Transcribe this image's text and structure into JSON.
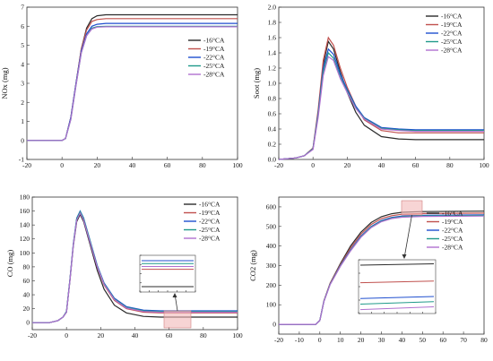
{
  "chart_data": [
    {
      "id": "nox",
      "type": "line",
      "ylabel": "NOx (mg)",
      "xlim": [
        -20,
        100
      ],
      "ylim": [
        -1,
        7
      ],
      "xticks": [
        -20,
        0,
        20,
        40,
        60,
        80,
        100
      ],
      "yticks": [
        -1,
        0,
        1,
        2,
        3,
        4,
        5,
        6,
        7
      ],
      "legend_position": "right",
      "series": [
        {
          "name": "-16°CA",
          "color": "#2b2b2b",
          "x": [
            -20,
            0,
            2,
            5,
            8,
            11,
            14,
            17,
            20,
            25,
            30,
            100
          ],
          "y": [
            0,
            0,
            0.1,
            1.2,
            3.0,
            4.8,
            5.9,
            6.4,
            6.55,
            6.6,
            6.6,
            6.6
          ]
        },
        {
          "name": "-19°CA",
          "color": "#c0504d",
          "x": [
            -20,
            0,
            2,
            5,
            8,
            11,
            14,
            17,
            20,
            25,
            30,
            100
          ],
          "y": [
            0,
            0,
            0.1,
            1.2,
            3.0,
            4.8,
            5.8,
            6.25,
            6.35,
            6.4,
            6.4,
            6.4
          ]
        },
        {
          "name": "-22°CA",
          "color": "#1f4fcf",
          "x": [
            -20,
            0,
            2,
            5,
            8,
            11,
            14,
            17,
            20,
            25,
            30,
            100
          ],
          "y": [
            0,
            0,
            0.1,
            1.2,
            3.0,
            4.7,
            5.6,
            6.0,
            6.1,
            6.15,
            6.15,
            6.15
          ]
        },
        {
          "name": "-25°CA",
          "color": "#1f9a8a",
          "x": [
            -20,
            0,
            2,
            5,
            8,
            11,
            14,
            17,
            20,
            25,
            30,
            100
          ],
          "y": [
            0,
            0,
            0.1,
            1.1,
            2.9,
            4.6,
            5.5,
            5.9,
            5.98,
            6.0,
            6.0,
            6.0
          ]
        },
        {
          "name": "-28°CA",
          "color": "#b070d0",
          "x": [
            -20,
            0,
            2,
            5,
            8,
            11,
            14,
            17,
            20,
            25,
            30,
            100
          ],
          "y": [
            0,
            0,
            0.1,
            1.1,
            2.9,
            4.6,
            5.5,
            5.85,
            5.95,
            5.97,
            5.97,
            5.97
          ]
        }
      ]
    },
    {
      "id": "soot",
      "type": "line",
      "ylabel": "Soot (mg)",
      "xlim": [
        -20,
        100
      ],
      "ylim": [
        0,
        2.0
      ],
      "xticks": [
        -20,
        0,
        20,
        40,
        60,
        80,
        100
      ],
      "yticks": [
        0.0,
        0.2,
        0.4,
        0.6,
        0.8,
        1.0,
        1.2,
        1.4,
        1.6,
        1.8,
        2.0
      ],
      "yticklabels": [
        "0.0",
        "0.2",
        "0.4",
        "0.6",
        "0.8",
        "1.0",
        "1.2",
        "1.4",
        "1.6",
        "1.8",
        "2.0"
      ],
      "legend_position": "top-right",
      "series": [
        {
          "name": "-16°CA",
          "color": "#2b2b2b",
          "x": [
            -20,
            -10,
            -5,
            0,
            3,
            6,
            9,
            12,
            16,
            20,
            25,
            30,
            40,
            50,
            60,
            100
          ],
          "y": [
            0,
            0.02,
            0.05,
            0.15,
            0.6,
            1.25,
            1.55,
            1.45,
            1.15,
            0.88,
            0.62,
            0.45,
            0.3,
            0.27,
            0.26,
            0.26
          ]
        },
        {
          "name": "-19°CA",
          "color": "#c0504d",
          "x": [
            -20,
            -10,
            -5,
            0,
            3,
            6,
            9,
            12,
            16,
            20,
            25,
            30,
            40,
            50,
            60,
            100
          ],
          "y": [
            0,
            0.02,
            0.05,
            0.15,
            0.65,
            1.3,
            1.6,
            1.5,
            1.2,
            0.95,
            0.7,
            0.52,
            0.38,
            0.35,
            0.35,
            0.35
          ]
        },
        {
          "name": "-22°CA",
          "color": "#1f4fcf",
          "x": [
            -20,
            -10,
            -5,
            0,
            3,
            6,
            9,
            12,
            16,
            20,
            25,
            30,
            40,
            50,
            60,
            100
          ],
          "y": [
            0,
            0.02,
            0.05,
            0.14,
            0.6,
            1.2,
            1.45,
            1.38,
            1.12,
            0.92,
            0.7,
            0.55,
            0.42,
            0.4,
            0.39,
            0.39
          ]
        },
        {
          "name": "-25°CA",
          "color": "#1f9a8a",
          "x": [
            -20,
            -10,
            -5,
            0,
            3,
            6,
            9,
            12,
            16,
            20,
            25,
            30,
            40,
            50,
            60,
            100
          ],
          "y": [
            0,
            0.02,
            0.05,
            0.14,
            0.58,
            1.15,
            1.4,
            1.33,
            1.08,
            0.9,
            0.68,
            0.54,
            0.41,
            0.39,
            0.38,
            0.38
          ]
        },
        {
          "name": "-28°CA",
          "color": "#b070d0",
          "x": [
            -20,
            -10,
            -5,
            0,
            3,
            6,
            9,
            12,
            16,
            20,
            25,
            30,
            40,
            50,
            60,
            100
          ],
          "y": [
            0,
            0.02,
            0.05,
            0.13,
            0.55,
            1.1,
            1.35,
            1.3,
            1.06,
            0.88,
            0.67,
            0.53,
            0.4,
            0.38,
            0.37,
            0.37
          ]
        }
      ]
    },
    {
      "id": "co",
      "type": "line",
      "ylabel": "CO (mg)",
      "xlim": [
        -20,
        100
      ],
      "ylim": [
        -10,
        180
      ],
      "xticks": [
        -20,
        0,
        20,
        40,
        60,
        80,
        100
      ],
      "yticks": [
        0,
        20,
        40,
        60,
        80,
        100,
        120,
        140,
        160,
        180
      ],
      "legend_position": "top-right",
      "inset": "zoomed region 56–72 x, ~10–22 y",
      "series": [
        {
          "name": "-16°CA",
          "color": "#2b2b2b",
          "x": [
            -20,
            -10,
            -5,
            -2,
            0,
            2,
            4,
            6,
            8,
            10,
            14,
            18,
            22,
            28,
            35,
            45,
            55,
            70,
            100
          ],
          "y": [
            0,
            0,
            3,
            8,
            15,
            60,
            110,
            145,
            155,
            145,
            110,
            75,
            48,
            25,
            14,
            9,
            8,
            8,
            8
          ]
        },
        {
          "name": "-19°CA",
          "color": "#c0504d",
          "x": [
            -20,
            -10,
            -5,
            -2,
            0,
            2,
            4,
            6,
            8,
            10,
            14,
            18,
            22,
            28,
            35,
            45,
            55,
            70,
            100
          ],
          "y": [
            0,
            0,
            3,
            8,
            16,
            62,
            112,
            148,
            158,
            148,
            114,
            80,
            54,
            32,
            20,
            15,
            14,
            14,
            14
          ]
        },
        {
          "name": "-22°CA",
          "color": "#1f4fcf",
          "x": [
            -20,
            -10,
            -5,
            -2,
            0,
            2,
            4,
            6,
            8,
            10,
            14,
            18,
            22,
            28,
            35,
            45,
            55,
            70,
            100
          ],
          "y": [
            0,
            0,
            3,
            8,
            16,
            62,
            113,
            150,
            160,
            150,
            116,
            82,
            57,
            35,
            23,
            18,
            17,
            17,
            17
          ]
        },
        {
          "name": "-25°CA",
          "color": "#1f9a8a",
          "x": [
            -20,
            -10,
            -5,
            -2,
            0,
            2,
            4,
            6,
            8,
            10,
            14,
            18,
            22,
            28,
            35,
            45,
            55,
            70,
            100
          ],
          "y": [
            0,
            0,
            3,
            8,
            16,
            61,
            112,
            149,
            159,
            149,
            115,
            81,
            56,
            34,
            22,
            17,
            16,
            16,
            16
          ]
        },
        {
          "name": "-28°CA",
          "color": "#b070d0",
          "x": [
            -20,
            -10,
            -5,
            -2,
            0,
            2,
            4,
            6,
            8,
            10,
            14,
            18,
            22,
            28,
            35,
            45,
            55,
            70,
            100
          ],
          "y": [
            0,
            0,
            3,
            8,
            15,
            60,
            111,
            147,
            157,
            147,
            113,
            80,
            55,
            33,
            21,
            16,
            15,
            15,
            15
          ]
        }
      ]
    },
    {
      "id": "co2",
      "type": "line",
      "ylabel": "CO2 (mg)",
      "xlim": [
        -20,
        80
      ],
      "ylim": [
        -50,
        650
      ],
      "xticks": [
        -20,
        -10,
        0,
        10,
        20,
        30,
        40,
        50,
        60,
        70,
        80
      ],
      "yticks": [
        0,
        100,
        200,
        300,
        400,
        500,
        600
      ],
      "legend_position": "right",
      "inset": "zoomed region 40–50 x, ~550–590 y",
      "series": [
        {
          "name": "-16°CA",
          "color": "#2b2b2b",
          "x": [
            -20,
            -2,
            0,
            2,
            5,
            10,
            15,
            20,
            25,
            30,
            35,
            40,
            50,
            80
          ],
          "y": [
            0,
            0,
            20,
            120,
            210,
            310,
            400,
            470,
            520,
            550,
            565,
            572,
            576,
            578
          ]
        },
        {
          "name": "-19°CA",
          "color": "#c0504d",
          "x": [
            -20,
            -2,
            0,
            2,
            5,
            10,
            15,
            20,
            25,
            30,
            35,
            40,
            50,
            80
          ],
          "y": [
            0,
            0,
            20,
            120,
            210,
            305,
            390,
            460,
            510,
            540,
            555,
            562,
            566,
            568
          ]
        },
        {
          "name": "-22°CA",
          "color": "#1f4fcf",
          "x": [
            -20,
            -2,
            0,
            2,
            5,
            10,
            15,
            20,
            25,
            30,
            35,
            40,
            50,
            80
          ],
          "y": [
            0,
            0,
            20,
            118,
            205,
            300,
            380,
            450,
            500,
            530,
            546,
            553,
            557,
            559
          ]
        },
        {
          "name": "-25°CA",
          "color": "#1f9a8a",
          "x": [
            -20,
            -2,
            0,
            2,
            5,
            10,
            15,
            20,
            25,
            30,
            35,
            40,
            50,
            80
          ],
          "y": [
            0,
            0,
            20,
            118,
            205,
            298,
            378,
            447,
            497,
            527,
            543,
            550,
            554,
            556
          ]
        },
        {
          "name": "-28°CA",
          "color": "#b070d0",
          "x": [
            -20,
            -2,
            0,
            2,
            5,
            10,
            15,
            20,
            25,
            30,
            35,
            40,
            50,
            80
          ],
          "y": [
            0,
            0,
            20,
            117,
            203,
            296,
            375,
            444,
            494,
            524,
            540,
            547,
            551,
            553
          ]
        }
      ]
    }
  ]
}
